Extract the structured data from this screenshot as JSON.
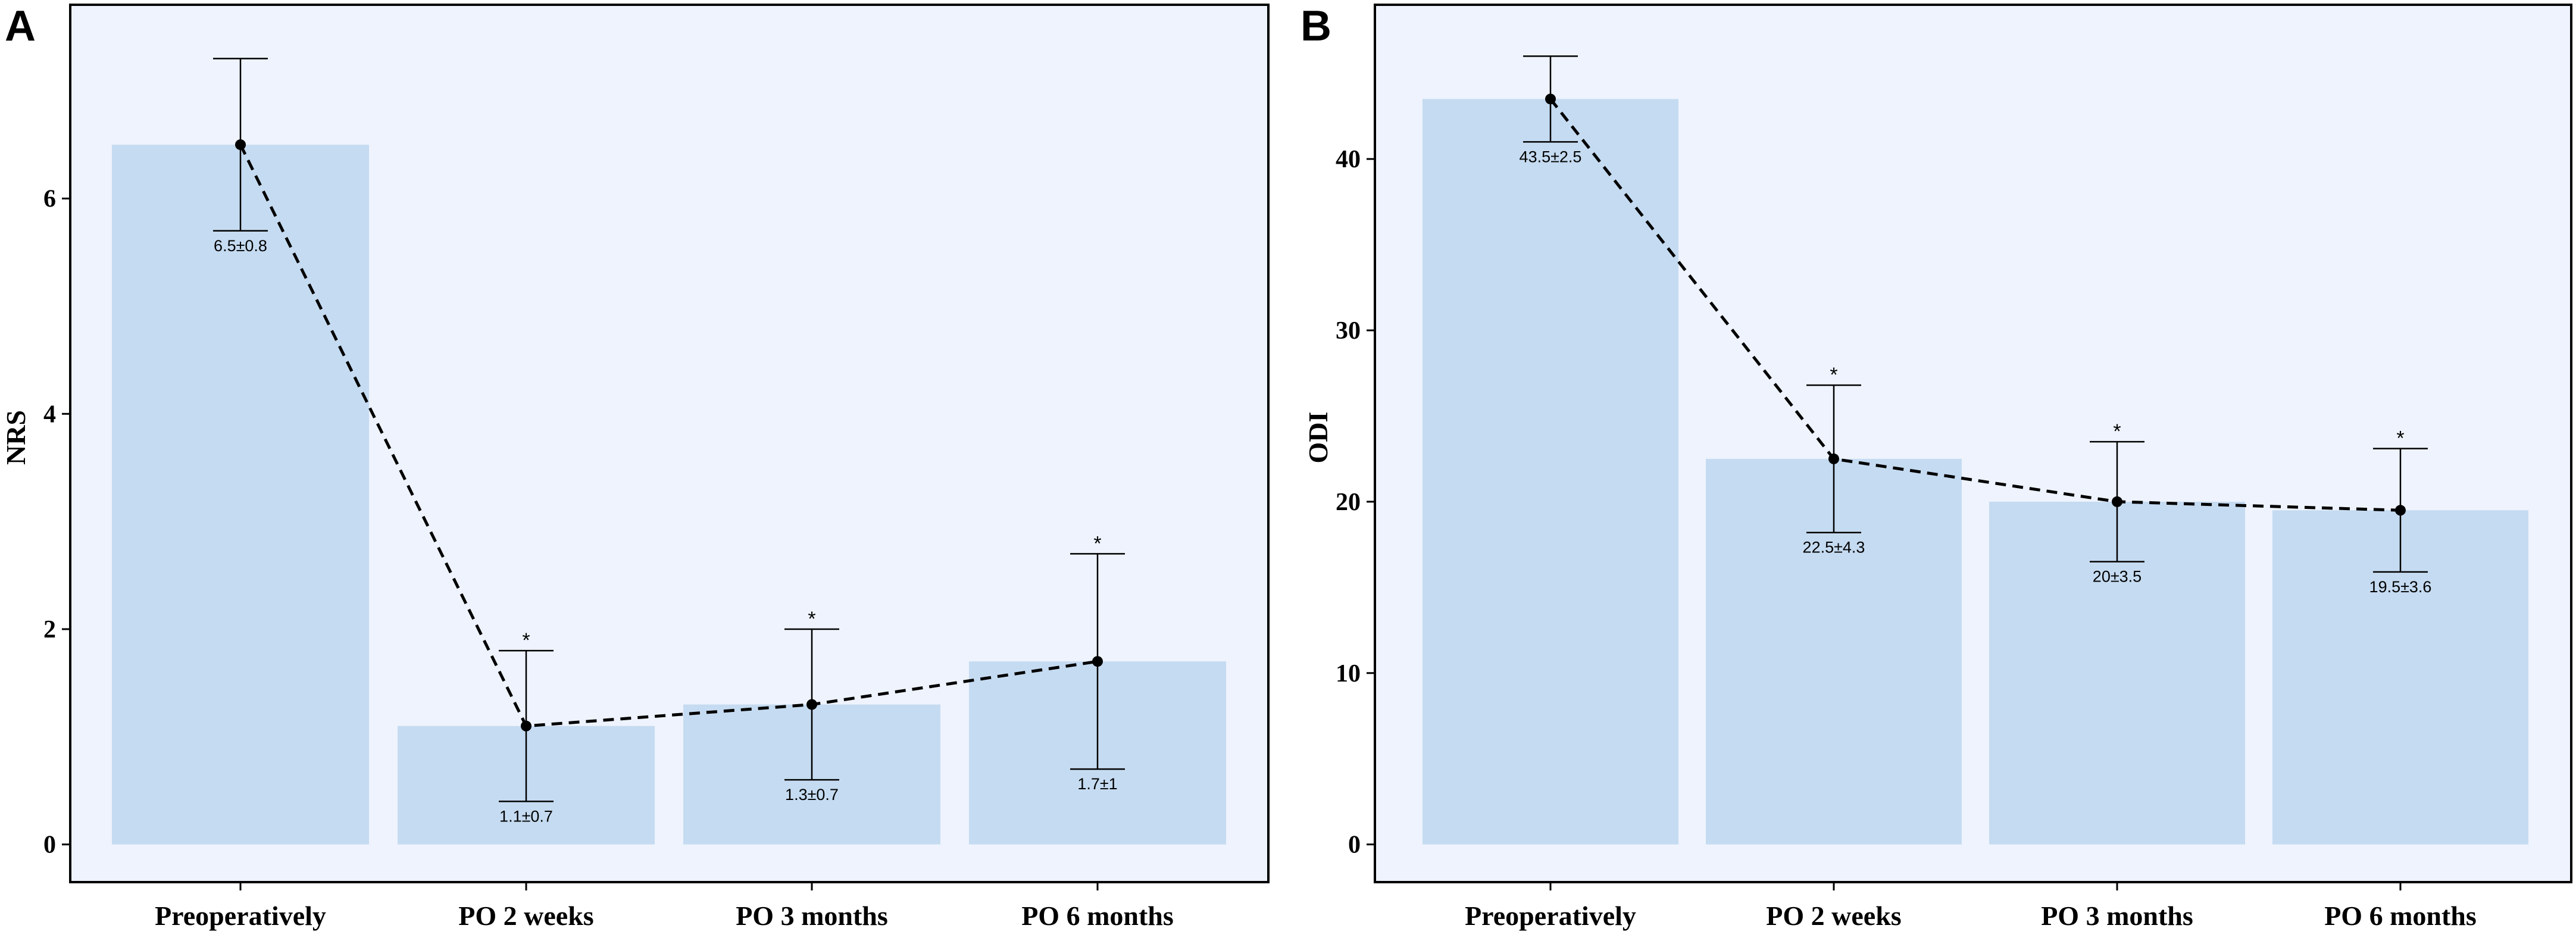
{
  "chart_data": [
    {
      "panel": "A",
      "type": "bar",
      "title": "",
      "xlabel": "",
      "ylabel": "NRS",
      "categories": [
        "Preoperatively",
        "PO 2 weeks",
        "PO 3 months",
        "PO  6 months"
      ],
      "values": [
        6.5,
        1.1,
        1.3,
        1.7
      ],
      "error_sd": [
        0.8,
        0.7,
        0.7,
        1.0
      ],
      "data_labels": [
        "6.5±0.8",
        "1.1±0.7",
        "1.3±0.7",
        "1.7±1"
      ],
      "significance": [
        "",
        "*",
        "*",
        "*"
      ],
      "ylim": [
        -0.35,
        7.8
      ],
      "yticks": [
        0,
        2,
        4,
        6
      ],
      "overlay": "dashed line connecting means"
    },
    {
      "panel": "B",
      "type": "bar",
      "title": "",
      "xlabel": "",
      "ylabel": "ODI",
      "categories": [
        "Preoperatively",
        "PO 2 weeks",
        "PO 3 months",
        "PO  6 months"
      ],
      "values": [
        43.5,
        22.5,
        20,
        19.5
      ],
      "error_sd": [
        2.5,
        4.3,
        3.5,
        3.6
      ],
      "data_labels": [
        "43.5±2.5",
        "22.5±4.3",
        "20±3.5",
        "19.5±3.6"
      ],
      "significance": [
        "",
        "*",
        "*",
        "*"
      ],
      "ylim": [
        -2.2,
        49.0
      ],
      "yticks": [
        0,
        10,
        20,
        30,
        40
      ],
      "overlay": "dashed line connecting means"
    }
  ],
  "colors": {
    "panel_bg": "#eef3fd",
    "bar_fill": "#c5dbf1",
    "ink": "#000000"
  }
}
